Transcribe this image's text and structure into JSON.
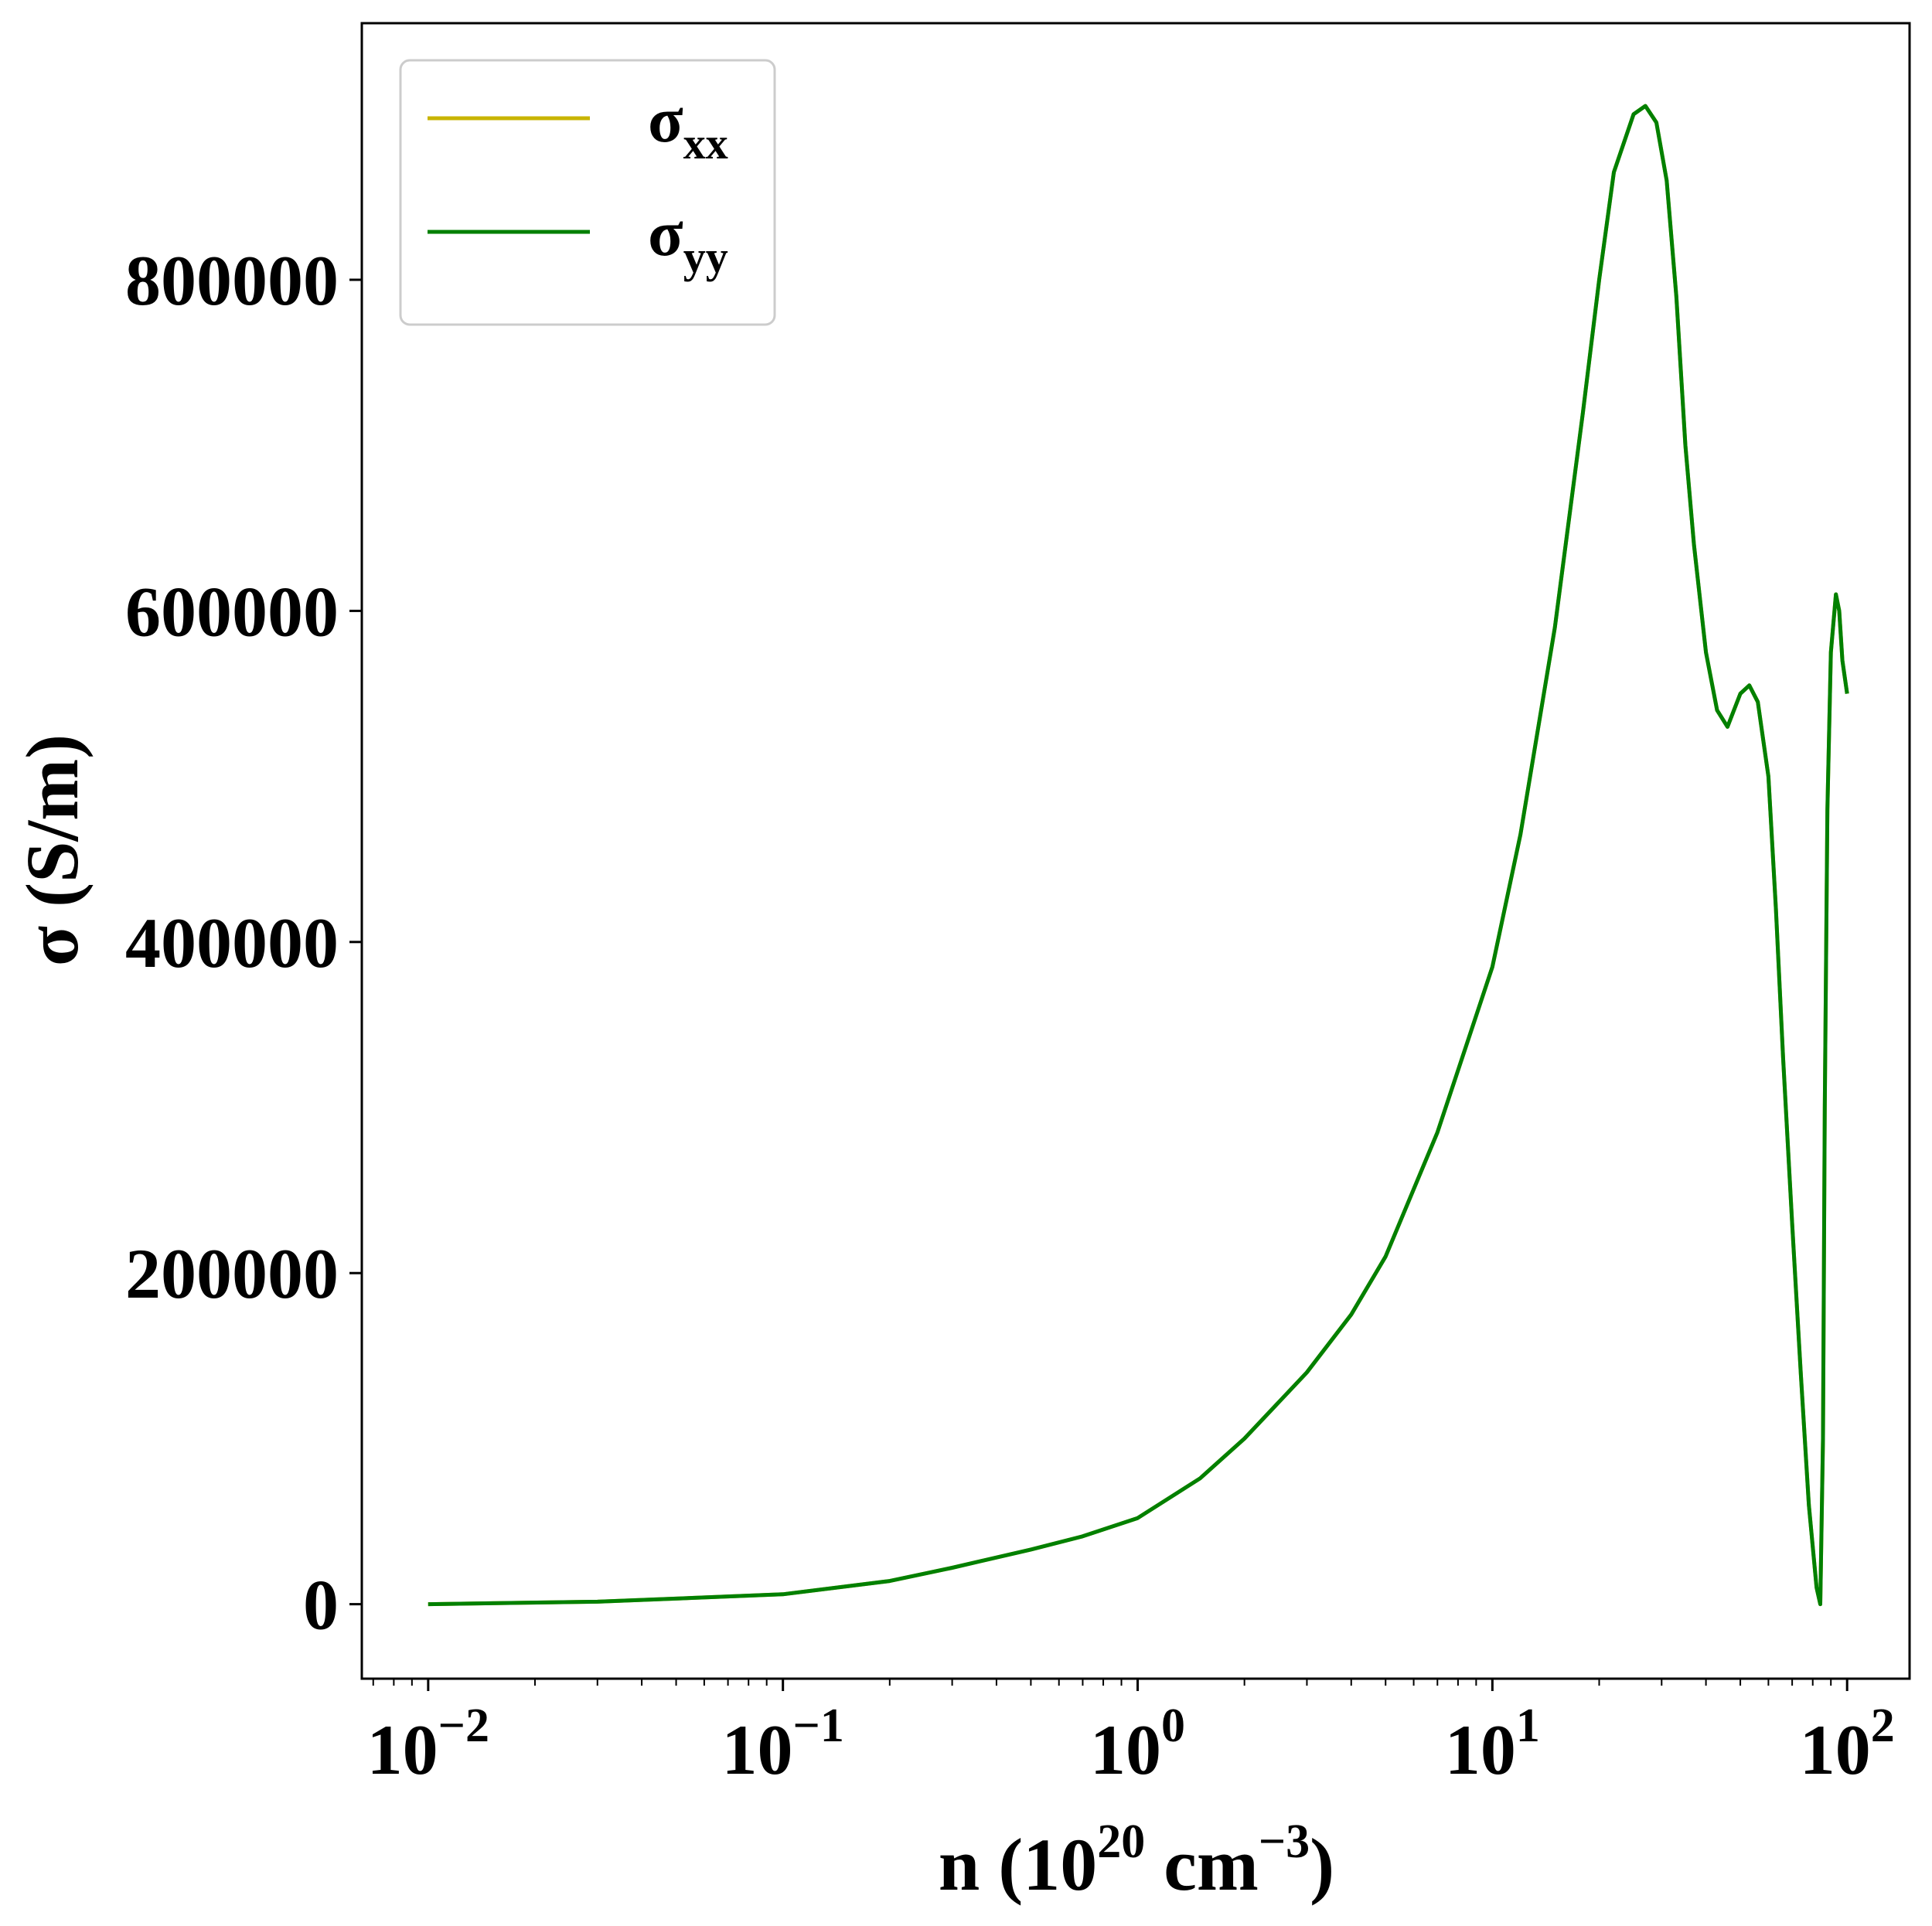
{
  "chart_data": {
    "type": "line",
    "xlabel": "n (10",
    "xlabel_exp": "20",
    "xlabel_unit": " cm",
    "xlabel_unit_exp": "−3",
    "xlabel_close": ")",
    "ylabel": "σ (S/m)",
    "xscale": "log",
    "xlim": [
      0.0065,
      150
    ],
    "ylim": [
      -45000,
      955000
    ],
    "x_ticks": [
      {
        "value": 0.01,
        "base": "10",
        "exp": "−2"
      },
      {
        "value": 0.1,
        "base": "10",
        "exp": "−1"
      },
      {
        "value": 1,
        "base": "10",
        "exp": "0"
      },
      {
        "value": 10,
        "base": "10",
        "exp": "1"
      },
      {
        "value": 100,
        "base": "10",
        "exp": "2"
      }
    ],
    "y_ticks": [
      {
        "value": 0,
        "label": "0"
      },
      {
        "value": 200000,
        "label": "200000"
      },
      {
        "value": 400000,
        "label": "400000"
      },
      {
        "value": 600000,
        "label": "600000"
      },
      {
        "value": 800000,
        "label": "800000"
      }
    ],
    "grid": false,
    "legend_position": "top-left",
    "series": [
      {
        "name": "σ",
        "subscript": "xx",
        "color": "#c8b400",
        "x": [
          0.01,
          0.03,
          0.1,
          0.2,
          0.3,
          0.5,
          0.7,
          1,
          1.5,
          2,
          3,
          4,
          5,
          7,
          10,
          12,
          15,
          18,
          20,
          22,
          25,
          27,
          29,
          31,
          33,
          35,
          37,
          40,
          43,
          46,
          50,
          53,
          56,
          60,
          63,
          66,
          70,
          74,
          78,
          82,
          84,
          85.5,
          86.5,
          88,
          90,
          93,
          95,
          97,
          100
        ],
        "y": [
          0,
          1500,
          6000,
          14000,
          22000,
          33000,
          41000,
          52000,
          76000,
          100000,
          140000,
          175000,
          210000,
          285000,
          385000,
          465000,
          590000,
          720000,
          800000,
          865000,
          900000,
          905000,
          895000,
          860000,
          790000,
          700000,
          640000,
          575000,
          540000,
          530000,
          550000,
          555000,
          545000,
          500000,
          420000,
          330000,
          230000,
          140000,
          60000,
          10000,
          0,
          100000,
          300000,
          480000,
          575000,
          610000,
          600000,
          570000,
          550000
        ]
      },
      {
        "name": "σ",
        "subscript": "yy",
        "color": "#008000",
        "x": [
          0.01,
          0.03,
          0.1,
          0.2,
          0.3,
          0.5,
          0.7,
          1,
          1.5,
          2,
          3,
          4,
          5,
          7,
          10,
          12,
          15,
          18,
          20,
          22,
          25,
          27,
          29,
          31,
          33,
          35,
          37,
          40,
          43,
          46,
          50,
          53,
          56,
          60,
          63,
          66,
          70,
          74,
          78,
          82,
          84,
          85.5,
          86.5,
          88,
          90,
          93,
          95,
          97,
          100
        ],
        "y": [
          0,
          1500,
          6000,
          14000,
          22000,
          33000,
          41000,
          52000,
          76000,
          100000,
          140000,
          175000,
          210000,
          285000,
          385000,
          465000,
          590000,
          720000,
          800000,
          865000,
          900000,
          905000,
          895000,
          860000,
          790000,
          700000,
          640000,
          575000,
          540000,
          530000,
          550000,
          555000,
          545000,
          500000,
          420000,
          330000,
          230000,
          140000,
          60000,
          10000,
          0,
          100000,
          300000,
          480000,
          575000,
          610000,
          600000,
          570000,
          550000
        ]
      }
    ]
  }
}
